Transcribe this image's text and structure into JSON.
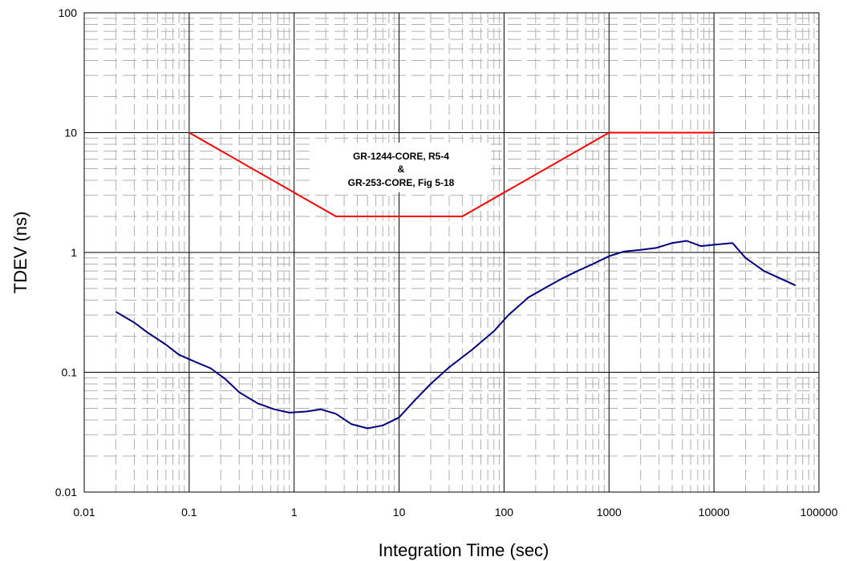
{
  "chart_data": {
    "type": "line",
    "title": "",
    "xlabel": "Integration Time (sec)",
    "ylabel": "TDEV (ns)",
    "x_scale": "log",
    "y_scale": "log",
    "xlim": [
      0.01,
      100000
    ],
    "ylim": [
      0.01,
      100
    ],
    "x_ticks": [
      "0.01",
      "0.1",
      "1",
      "10",
      "100",
      "1000",
      "10000",
      "100000"
    ],
    "y_ticks": [
      "100",
      "10",
      "1",
      "0.1",
      "0.01"
    ],
    "grid": true,
    "minor_grid_style": "dashed",
    "legend": "none",
    "annotation": {
      "lines": [
        "GR-1244-CORE, R5-4",
        "&",
        "GR-253-CORE, Fig 5-18"
      ]
    },
    "series": [
      {
        "color": "#ff0000",
        "points": [
          [
            0.1,
            10
          ],
          [
            2.5,
            2
          ],
          [
            40,
            2
          ],
          [
            1000,
            10
          ],
          [
            10000,
            10
          ]
        ]
      },
      {
        "color": "#000080",
        "points": [
          [
            0.02,
            0.32
          ],
          [
            0.03,
            0.26
          ],
          [
            0.04,
            0.215
          ],
          [
            0.06,
            0.17
          ],
          [
            0.08,
            0.14
          ],
          [
            0.12,
            0.12
          ],
          [
            0.16,
            0.108
          ],
          [
            0.22,
            0.088
          ],
          [
            0.3,
            0.068
          ],
          [
            0.45,
            0.055
          ],
          [
            0.65,
            0.049
          ],
          [
            0.9,
            0.046
          ],
          [
            1.3,
            0.047
          ],
          [
            1.8,
            0.049
          ],
          [
            2.5,
            0.045
          ],
          [
            3.5,
            0.037
          ],
          [
            5,
            0.034
          ],
          [
            7,
            0.036
          ],
          [
            10,
            0.042
          ],
          [
            14,
            0.058
          ],
          [
            20,
            0.08
          ],
          [
            30,
            0.11
          ],
          [
            50,
            0.155
          ],
          [
            80,
            0.22
          ],
          [
            110,
            0.3
          ],
          [
            170,
            0.42
          ],
          [
            250,
            0.51
          ],
          [
            350,
            0.6
          ],
          [
            500,
            0.7
          ],
          [
            700,
            0.8
          ],
          [
            1000,
            0.93
          ],
          [
            1400,
            1.02
          ],
          [
            2000,
            1.05
          ],
          [
            2800,
            1.09
          ],
          [
            4000,
            1.2
          ],
          [
            5500,
            1.25
          ],
          [
            7500,
            1.13
          ],
          [
            10000,
            1.16
          ],
          [
            15000,
            1.2
          ],
          [
            20000,
            0.9
          ],
          [
            30000,
            0.7
          ],
          [
            60000,
            0.53
          ]
        ]
      }
    ]
  }
}
